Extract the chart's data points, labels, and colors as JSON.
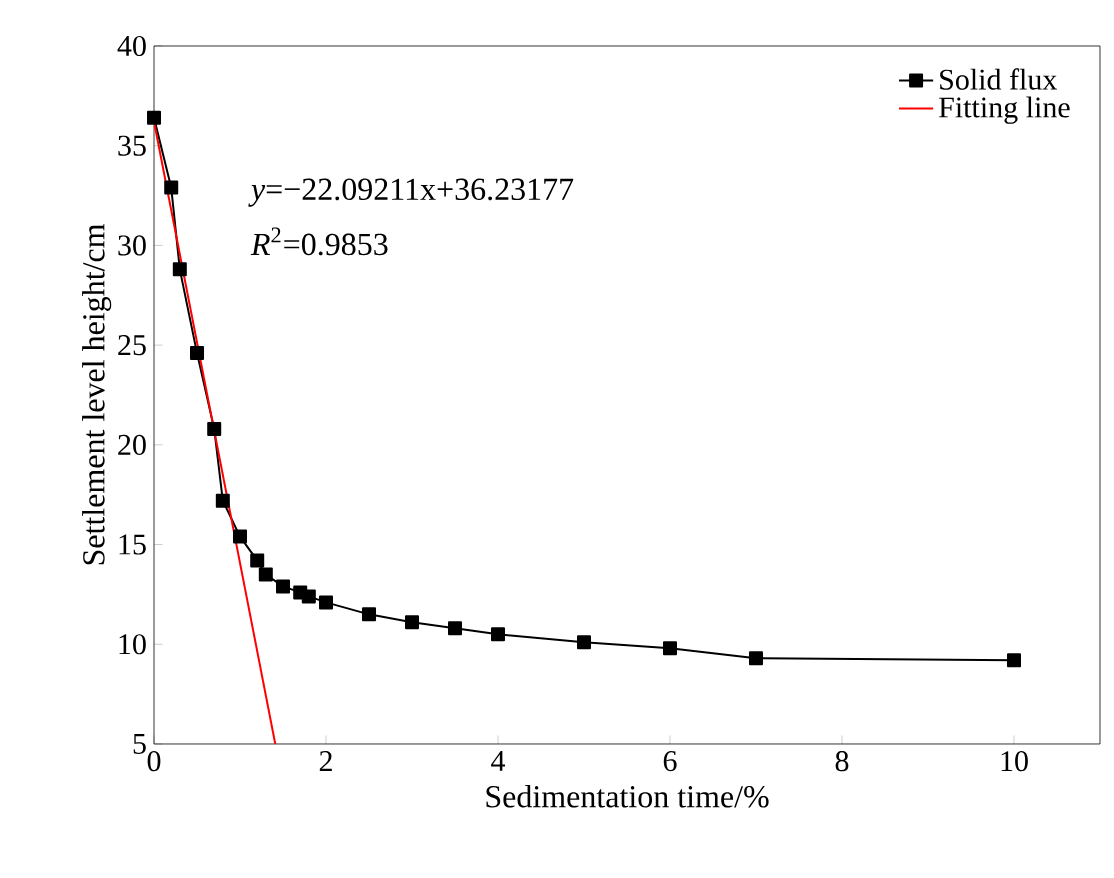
{
  "chart_data": {
    "type": "line",
    "xlabel": "Sedimentation time/%",
    "ylabel": "Settlement level height/cm",
    "xlim": [
      0,
      11
    ],
    "ylim": [
      5,
      40
    ],
    "xticks": [
      0,
      2,
      4,
      6,
      8,
      10
    ],
    "yticks": [
      5,
      10,
      15,
      20,
      25,
      30,
      35,
      40
    ],
    "legend": "top right",
    "grid": false,
    "annotations": [
      "*y*=−22.09211x+36.23177",
      "*R*$^{2}$=0.9853"
    ],
    "series": [
      {
        "name": "Solid flux",
        "color": "#000000",
        "marker": "square",
        "x": [
          0,
          0.2,
          0.3,
          0.5,
          0.7,
          0.8,
          1.0,
          1.2,
          1.3,
          1.5,
          1.7,
          1.8,
          2.0,
          2.5,
          3.0,
          3.5,
          4.0,
          5.0,
          6.0,
          7.0,
          10.0
        ],
        "values": [
          36.4,
          32.9,
          28.8,
          24.6,
          20.8,
          17.2,
          15.4,
          14.2,
          13.5,
          12.9,
          12.6,
          12.4,
          12.1,
          11.5,
          11.1,
          10.8,
          10.5,
          10.1,
          9.8,
          9.3,
          9.2
        ]
      },
      {
        "name": "Fitting line",
        "color": "#ff0000",
        "marker": "none",
        "x": [
          0,
          1.41
        ],
        "values": [
          36.2,
          5
        ]
      }
    ]
  }
}
